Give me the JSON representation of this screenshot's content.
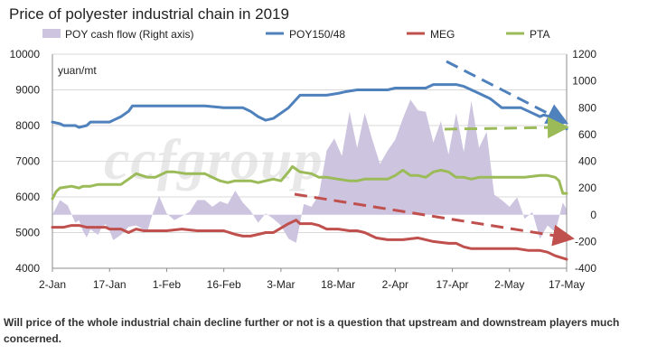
{
  "chart_data": {
    "type": "line",
    "title": "Price of polyester industrial chain in 2019",
    "unit_label": "yuan/mt",
    "x_tick_labels": [
      "2-Jan",
      "17-Jan",
      "1-Feb",
      "16-Feb",
      "3-Mar",
      "18-Mar",
      "2-Apr",
      "17-Apr",
      "2-May",
      "17-May"
    ],
    "x_range_days": [
      0,
      135
    ],
    "y_left_ticks": [
      4000,
      5000,
      6000,
      7000,
      8000,
      9000,
      10000
    ],
    "y_left_range": [
      4000,
      10000
    ],
    "y_right_ticks": [
      -400,
      -200,
      0,
      200,
      400,
      600,
      800,
      1000,
      1200
    ],
    "y_right_range": [
      -400,
      1200
    ],
    "legend": [
      "POY cash flow (Right axis)",
      "POY150/48",
      "MEG",
      "PTA"
    ],
    "colors": {
      "poy_cash_flow": "#cdc4e0",
      "poy": "#4f81bd",
      "meg": "#c0504d",
      "pta": "#9bbb59"
    },
    "series": [
      {
        "name": "POY150/48",
        "axis": "left",
        "x": [
          0,
          2,
          3,
          6,
          7,
          9,
          10,
          12,
          15,
          18,
          20,
          21,
          22,
          40,
          45,
          48,
          50,
          52,
          54,
          56,
          58,
          62,
          65,
          68,
          69,
          72,
          75,
          77,
          80,
          85,
          88,
          90,
          92,
          94,
          96,
          98,
          100,
          102,
          106,
          108,
          110,
          112,
          115,
          118,
          120,
          123,
          126,
          128,
          129,
          132,
          135
        ],
        "y": [
          8100,
          8050,
          8000,
          8000,
          7950,
          8000,
          8100,
          8100,
          8100,
          8250,
          8400,
          8550,
          8550,
          8550,
          8500,
          8500,
          8500,
          8400,
          8250,
          8150,
          8200,
          8500,
          8850,
          8850,
          8850,
          8850,
          8900,
          8950,
          9000,
          9000,
          9000,
          9050,
          9050,
          9050,
          9050,
          9050,
          9150,
          9150,
          9150,
          9100,
          9000,
          8900,
          8750,
          8500,
          8500,
          8500,
          8350,
          8250,
          8300,
          8200,
          7900
        ]
      },
      {
        "name": "MEG",
        "axis": "left",
        "x": [
          0,
          3,
          5,
          7,
          9,
          12,
          14,
          15,
          16,
          18,
          20,
          21,
          22,
          24,
          26,
          30,
          34,
          38,
          42,
          45,
          48,
          50,
          52,
          54,
          56,
          58,
          62,
          64,
          65,
          68,
          70,
          72,
          75,
          78,
          80,
          82,
          85,
          88,
          90,
          92,
          96,
          98,
          100,
          104,
          106,
          108,
          110,
          112,
          115,
          118,
          122,
          125,
          128,
          130,
          132,
          135
        ],
        "y": [
          5150,
          5150,
          5200,
          5200,
          5150,
          5150,
          5150,
          5100,
          5100,
          5100,
          5000,
          5050,
          5100,
          5050,
          5050,
          5050,
          5100,
          5050,
          5050,
          5050,
          4950,
          4900,
          4900,
          4950,
          5000,
          5000,
          5250,
          5350,
          5250,
          5250,
          5200,
          5100,
          5100,
          5050,
          5050,
          5000,
          4850,
          4800,
          4800,
          4800,
          4850,
          4800,
          4750,
          4700,
          4700,
          4600,
          4550,
          4550,
          4550,
          4550,
          4550,
          4500,
          4500,
          4450,
          4350,
          4250
        ]
      },
      {
        "name": "PTA",
        "axis": "left",
        "x": [
          0,
          1,
          2,
          5,
          7,
          8,
          10,
          12,
          15,
          18,
          20,
          22,
          25,
          27,
          30,
          32,
          35,
          38,
          40,
          42,
          44,
          46,
          48,
          50,
          52,
          54,
          56,
          58,
          60,
          62,
          63,
          65,
          68,
          70,
          72,
          75,
          78,
          80,
          82,
          85,
          88,
          90,
          92,
          94,
          96,
          98,
          100,
          102,
          104,
          106,
          108,
          110,
          112,
          116,
          120,
          124,
          128,
          130,
          132,
          133,
          134,
          135
        ],
        "y": [
          5950,
          6150,
          6250,
          6300,
          6250,
          6300,
          6300,
          6350,
          6350,
          6350,
          6500,
          6650,
          6550,
          6550,
          6700,
          6700,
          6650,
          6650,
          6650,
          6550,
          6450,
          6400,
          6450,
          6450,
          6450,
          6400,
          6450,
          6500,
          6450,
          6700,
          6850,
          6700,
          6650,
          6550,
          6550,
          6500,
          6450,
          6450,
          6500,
          6500,
          6500,
          6600,
          6750,
          6600,
          6600,
          6550,
          6700,
          6750,
          6700,
          6550,
          6550,
          6500,
          6550,
          6550,
          6550,
          6550,
          6600,
          6600,
          6550,
          6450,
          6100,
          6100
        ]
      },
      {
        "name": "POY cash flow (Right axis)",
        "axis": "right",
        "type": "area",
        "x": [
          0,
          2,
          4,
          6,
          7,
          8,
          9,
          10,
          12,
          13,
          14,
          15,
          16,
          18,
          20,
          22,
          24,
          25,
          26,
          28,
          30,
          32,
          34,
          36,
          38,
          40,
          42,
          44,
          46,
          48,
          50,
          52,
          54,
          56,
          58,
          60,
          62,
          64,
          66,
          68,
          70,
          72,
          74,
          76,
          78,
          80,
          82,
          84,
          86,
          88,
          90,
          92,
          94,
          96,
          98,
          100,
          102,
          104,
          106,
          108,
          110,
          112,
          114,
          116,
          118,
          120,
          122,
          124,
          126,
          128,
          130,
          132,
          134,
          135
        ],
        "y": [
          0,
          110,
          70,
          -60,
          -40,
          -120,
          -170,
          -110,
          -150,
          -90,
          -70,
          -120,
          -190,
          -150,
          -90,
          -80,
          -110,
          -120,
          -20,
          140,
          10,
          -40,
          -10,
          20,
          110,
          110,
          60,
          100,
          80,
          180,
          90,
          30,
          -60,
          10,
          -30,
          -80,
          -180,
          -210,
          80,
          60,
          150,
          480,
          570,
          440,
          770,
          500,
          760,
          560,
          380,
          480,
          560,
          720,
          860,
          780,
          770,
          540,
          700,
          450,
          760,
          470,
          850,
          500,
          620,
          150,
          110,
          60,
          130,
          -30,
          20,
          -180,
          -80,
          -130,
          90,
          40
        ]
      }
    ],
    "trend_arrows": [
      {
        "series": "POY150/48",
        "direction": "down"
      },
      {
        "series": "PTA",
        "direction": "flat"
      },
      {
        "series": "MEG",
        "direction": "down"
      }
    ],
    "watermark": "ccfgroup",
    "caption": "Will price of the whole industrial chain decline further or not is a question that upstream and downstream players much concerned."
  }
}
